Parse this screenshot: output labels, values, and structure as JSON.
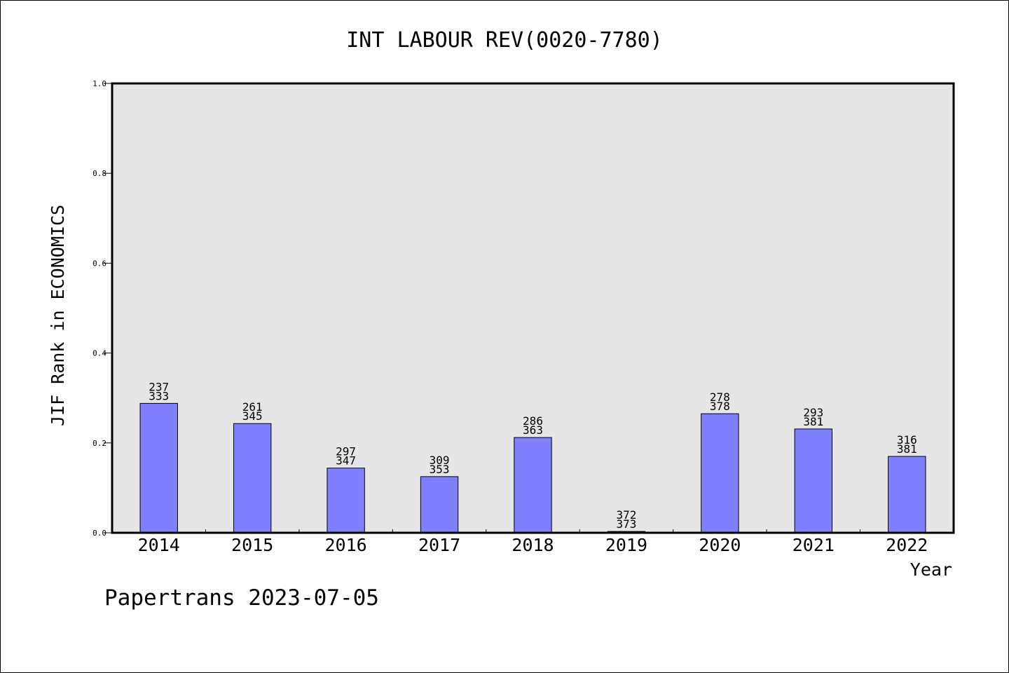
{
  "chart_data": {
    "type": "bar",
    "title": "INT LABOUR REV(0020-7780)",
    "xlabel": "Year",
    "ylabel": "JIF Rank in ECONOMICS",
    "ylim": [
      0,
      1.0
    ],
    "yticks": [
      "0.0",
      "0.2",
      "0.4",
      "0.6",
      "0.8",
      "1.0"
    ],
    "categories": [
      "2014",
      "2015",
      "2016",
      "2017",
      "2018",
      "2019",
      "2020",
      "2021",
      "2022"
    ],
    "values": [
      0.288,
      0.243,
      0.144,
      0.125,
      0.212,
      0.003,
      0.265,
      0.231,
      0.17
    ],
    "ranks": [
      "237",
      "261",
      "297",
      "309",
      "286",
      "372",
      "278",
      "293",
      "316"
    ],
    "totals": [
      "333",
      "345",
      "347",
      "353",
      "363",
      "373",
      "378",
      "381",
      "381"
    ],
    "grid": false,
    "bar_color": "#8080ff",
    "plot_background": "#e6e6e6"
  },
  "footer": {
    "text": "Papertrans 2023-07-05"
  }
}
